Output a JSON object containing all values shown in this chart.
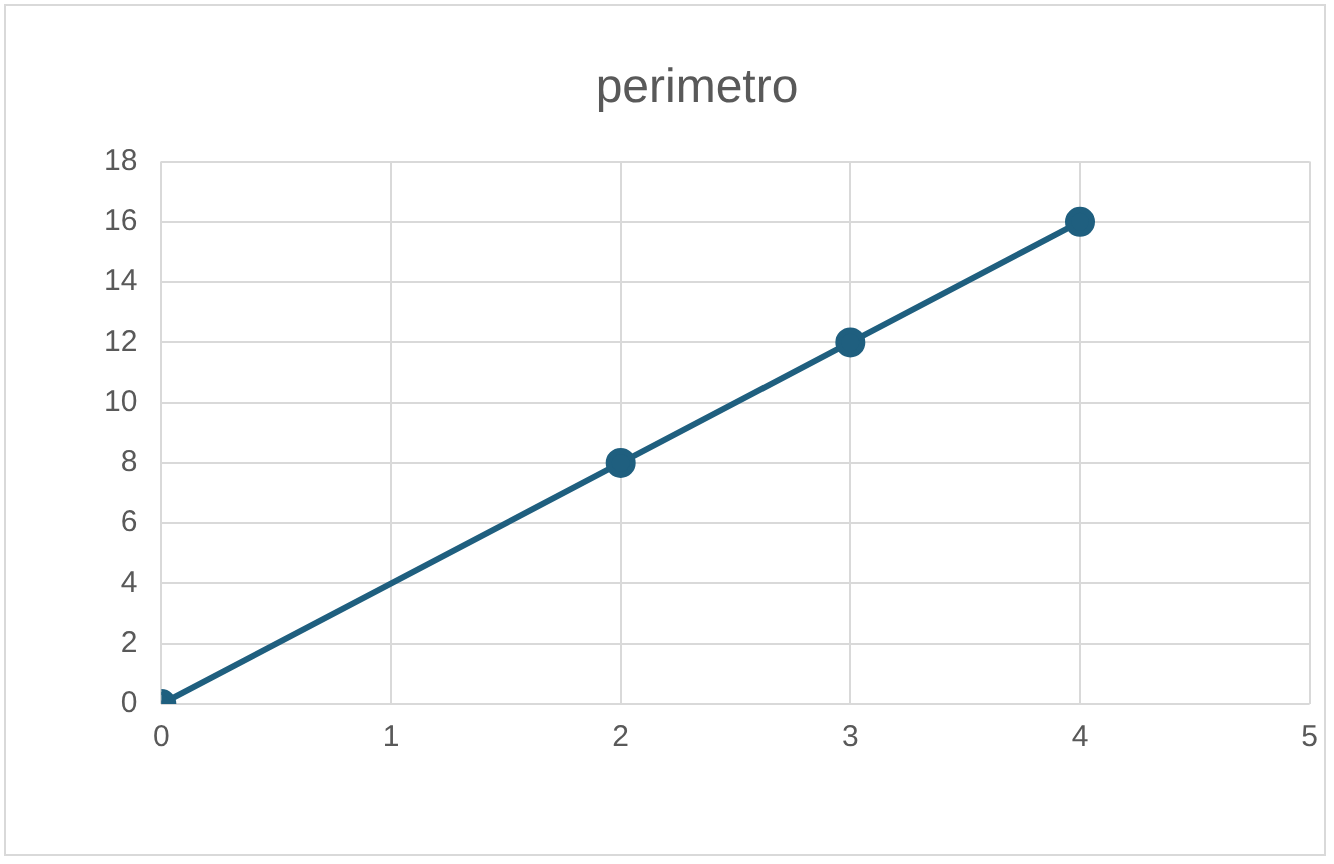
{
  "chart_data": {
    "type": "line",
    "title": "perimetro",
    "x": [
      0,
      2,
      3,
      4
    ],
    "series": [
      {
        "color": "#1f5f7f",
        "values": [
          0,
          8,
          12,
          16
        ]
      }
    ],
    "xlim": [
      0,
      5
    ],
    "xticks": [
      0,
      1,
      2,
      3,
      4,
      5
    ],
    "ylim": [
      0,
      18
    ],
    "yticks": [
      0,
      2,
      4,
      6,
      8,
      10,
      12,
      14,
      16,
      18
    ],
    "grid": true,
    "legend": false,
    "marker": "circle",
    "line_style": "solid"
  }
}
